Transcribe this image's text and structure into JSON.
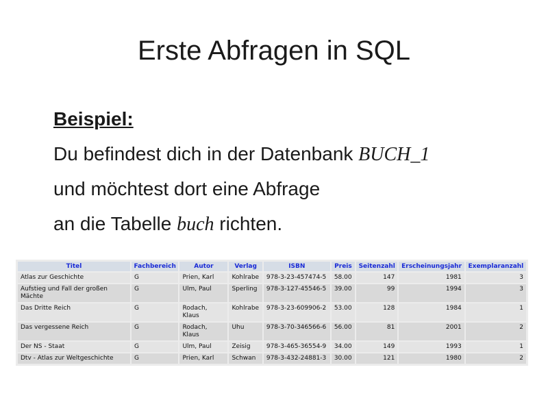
{
  "slide": {
    "title": "Erste Abfragen in SQL",
    "heading": "Beispiel:",
    "line1_text": "Du befindest dich in der Datenbank ",
    "line1_italic": "BUCH_1",
    "line2_text": "und möchtest dort eine Abfrage",
    "line3_text_a": "an die Tabelle ",
    "line3_italic": "buch",
    "line3_text_b": " richten."
  },
  "table": {
    "headers": [
      "Titel",
      "Fachbereich",
      "Autor",
      "Verlag",
      "ISBN",
      "Preis",
      "Seitenzahl",
      "Erscheinungsjahr",
      "Exemplaranzahl"
    ],
    "rows": [
      [
        "Atlas zur Geschichte",
        "G",
        "Prien, Karl",
        "Kohlrabe",
        "978-3-23-457474-5",
        "58.00",
        "147",
        "1981",
        "3"
      ],
      [
        "Aufstieg und Fall der großen Mächte",
        "G",
        "Ulm, Paul",
        "Sperling",
        "978-3-127-45546-5",
        "39.00",
        "99",
        "1994",
        "3"
      ],
      [
        "Das Dritte Reich",
        "G",
        "Rodach, Klaus",
        "Kohlrabe",
        "978-3-23-609906-2",
        "53.00",
        "128",
        "1984",
        "1"
      ],
      [
        "Das vergessene Reich",
        "G",
        "Rodach, Klaus",
        "Uhu",
        "978-3-70-346566-6",
        "56.00",
        "81",
        "2001",
        "2"
      ],
      [
        "Der NS - Staat",
        "G",
        "Ulm, Paul",
        "Zeisig",
        "978-3-465-36554-9",
        "34.00",
        "149",
        "1993",
        "1"
      ],
      [
        "Dtv - Atlas zur Weltgeschichte",
        "G",
        "Prien, Karl",
        "Schwan",
        "978-3-432-24881-3",
        "30.00",
        "121",
        "1980",
        "2"
      ]
    ]
  }
}
